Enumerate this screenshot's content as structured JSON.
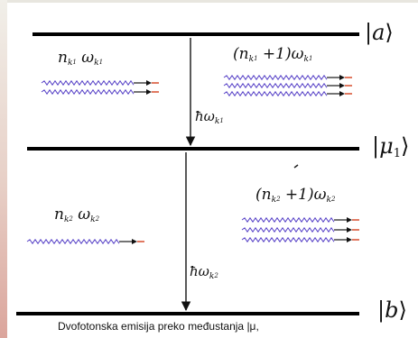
{
  "diagram": {
    "levels": [
      {
        "id": "a",
        "ket_symbol": "a"
      },
      {
        "id": "mu1",
        "ket_symbol": "μ",
        "ket_sub": "1"
      },
      {
        "id": "b",
        "ket_symbol": "b"
      }
    ],
    "transitions": [
      {
        "from": "a",
        "to": "mu1",
        "label": "ħω",
        "sub": "k",
        "subsub": "1"
      },
      {
        "from": "mu1",
        "to": "b",
        "label": "ħω",
        "sub": "k",
        "subsub": "2"
      }
    ],
    "mode_labels": {
      "upper_left": {
        "n": "n",
        "k_sub": "k",
        "k_idx": "1",
        "omega": "ω",
        "photons": 2
      },
      "upper_right": {
        "prefix": "(n",
        "k_sub": "k",
        "k_idx": "1",
        "suffix": " +1)ω",
        "photons": 3
      },
      "lower_left": {
        "n": "n",
        "k_sub": "k",
        "k_idx": "2",
        "omega": "ω",
        "photons": 1
      },
      "lower_right": {
        "prefix": "(n",
        "k_sub": "k",
        "k_idx": "2",
        "suffix": " +1)ω",
        "photons": 3
      }
    },
    "colors": {
      "level_line": "#000000",
      "wave": "#5a45c8",
      "arrow_head": "#d4401e",
      "arrow_line": "#222222"
    },
    "caption": "Dvofotonska emisija preko međustanja |μ,"
  }
}
